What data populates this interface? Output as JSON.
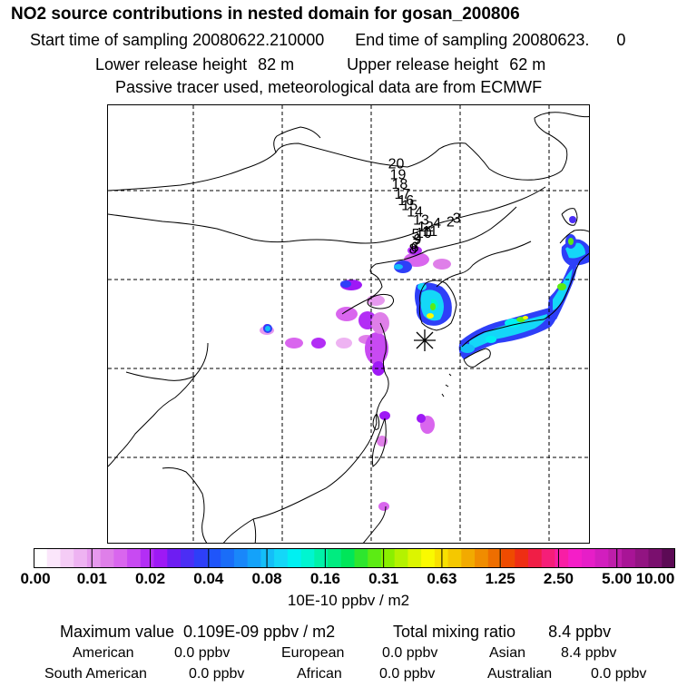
{
  "header": {
    "title": "NO2 source contributions in nested domain for gosan_200806",
    "start_label": "Start time of sampling 20080622.210000",
    "end_label": "End time of sampling 20080623.",
    "end_suffix": "0",
    "lower_label": "Lower release height",
    "lower_value": "82 m",
    "upper_label": "Upper release height",
    "upper_value": "62 m",
    "note": "Passive tracer used, meteorological data are from ECMWF"
  },
  "map": {
    "receptor_icon": "asterisk-icon",
    "trajectory_labels": [
      {
        "text": "20",
        "lon": 127.8,
        "lat": 45.3
      },
      {
        "text": "19",
        "lon": 128.0,
        "lat": 44.1
      },
      {
        "text": "18",
        "lon": 128.2,
        "lat": 43.0
      },
      {
        "text": "17",
        "lon": 128.5,
        "lat": 41.9
      },
      {
        "text": "16",
        "lon": 128.9,
        "lat": 41.2
      },
      {
        "text": "15",
        "lon": 129.3,
        "lat": 40.6
      },
      {
        "text": "14",
        "lon": 129.9,
        "lat": 39.9
      },
      {
        "text": "13",
        "lon": 130.6,
        "lat": 39.0
      },
      {
        "text": "12",
        "lon": 131.1,
        "lat": 38.2
      },
      {
        "text": "4",
        "lon": 132.4,
        "lat": 38.6
      },
      {
        "text": "2",
        "lon": 133.9,
        "lat": 38.8
      },
      {
        "text": "3",
        "lon": 134.6,
        "lat": 39.2
      },
      {
        "text": "11",
        "lon": 131.6,
        "lat": 37.7
      },
      {
        "text": "10",
        "lon": 130.9,
        "lat": 37.5
      },
      {
        "text": "5",
        "lon": 130.0,
        "lat": 37.4
      },
      {
        "text": "9",
        "lon": 130.2,
        "lat": 36.8
      },
      {
        "text": "7",
        "lon": 130.1,
        "lat": 36.3
      },
      {
        "text": "6",
        "lon": 129.9,
        "lat": 35.9
      },
      {
        "text": "8",
        "lon": 129.7,
        "lat": 35.7
      }
    ]
  },
  "colorbar": {
    "colors": [
      "#ffffff",
      "#fbe6fb",
      "#f5ccf6",
      "#eeb3f2",
      "#e699ee",
      "#df7fe9",
      "#d966ee",
      "#c84af2",
      "#b32ef5",
      "#9e19f5",
      "#6e1df2",
      "#4b2ef5",
      "#2e3ff8",
      "#1f55fa",
      "#1a6df8",
      "#1987fa",
      "#14a2fa",
      "#14bef8",
      "#14d7f8",
      "#00f0f2",
      "#00f5d0",
      "#00f2a8",
      "#00ec80",
      "#00e659",
      "#2ee62e",
      "#5ceb14",
      "#8aef00",
      "#b4f200",
      "#dcf500",
      "#fafa00",
      "#f8e000",
      "#f5c800",
      "#f2aa00",
      "#f08c00",
      "#ee6e00",
      "#ee4b00",
      "#ee2e14",
      "#f01e46",
      "#f51e78",
      "#f81ea5",
      "#f51ec8",
      "#e61ec8",
      "#d21ebe",
      "#be1eaa",
      "#a81496",
      "#921482",
      "#7a0f6e",
      "#5c0a55"
    ],
    "tick_labels": [
      "0.00",
      "0.01",
      "0.02",
      "0.04",
      "0.08",
      "0.16",
      "0.31",
      "0.63",
      "1.25",
      "2.50",
      "5.00",
      "10.00"
    ],
    "unit": "10E-10 ppbv / m2"
  },
  "stats": {
    "max_label": "Maximum value",
    "max_value": "0.109E-09 ppbv / m2",
    "total_label": "Total mixing ratio",
    "total_value": "8.4 ppbv",
    "regions": [
      {
        "name": "American",
        "value": "0.0 ppbv"
      },
      {
        "name": "European",
        "value": "0.0 ppbv"
      },
      {
        "name": "Asian",
        "value": "8.4 ppbv"
      },
      {
        "name": "South American",
        "value": "0.0 ppbv"
      },
      {
        "name": "African",
        "value": "0.0 ppbv"
      },
      {
        "name": "Australian",
        "value": "0.0 ppbv"
      }
    ]
  }
}
